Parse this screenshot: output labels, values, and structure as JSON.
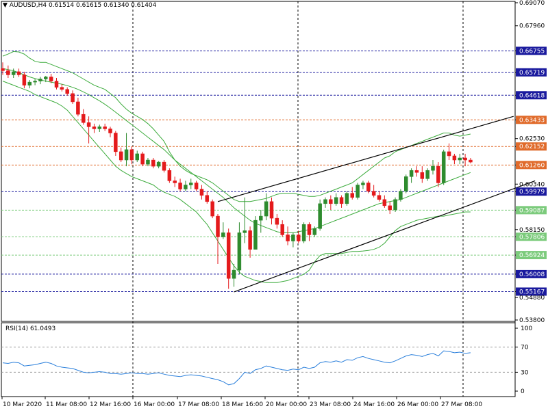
{
  "header": {
    "arrow": "▼",
    "symbol": "AUDUSD,H4",
    "ohlc": "0.61514 0.61615 0.61340 0.61404"
  },
  "rsi_title": "RSI(14) 61.0493",
  "colors": {
    "bull": "#2E8B2E",
    "bear": "#E41A1C",
    "band": "#3CAB3C",
    "rsi": "#2A7FDB",
    "blue_level": "#1A1A9E",
    "orange_level": "#E06A2A",
    "green_level": "#7CCB7C",
    "grid": "#000000"
  },
  "chart_data": [
    {
      "type": "candlestick",
      "title": "AUDUSD,H4",
      "ylim": [
        0.538,
        0.6907
      ],
      "price_ticks": [
        "0.69070",
        "0.67960",
        "0.66755",
        "0.65719",
        "0.64618",
        "0.63433",
        "0.62530",
        "0.62152",
        "0.61260",
        "0.60340",
        "0.59979",
        "0.59087",
        "0.58150",
        "0.57806",
        "0.56924",
        "0.56008",
        "0.55167",
        "0.54880",
        "0.53800"
      ],
      "x_labels": [
        "10 Mar 2020",
        "11 Mar 08:00",
        "12 Mar 16:00",
        "16 Mar 00:00",
        "17 Mar 08:00",
        "18 Mar 16:00",
        "20 Mar 00:00",
        "23 Mar 08:00",
        "24 Mar 16:00",
        "26 Mar 00:00",
        "27 Mar 08:00"
      ],
      "levels": [
        {
          "price": 0.66755,
          "label": "0.66755",
          "style": "blue"
        },
        {
          "price": 0.65719,
          "label": "0.65719",
          "style": "blue"
        },
        {
          "price": 0.64618,
          "label": "0.64618",
          "style": "blue"
        },
        {
          "price": 0.63433,
          "label": "0.63433",
          "style": "orange"
        },
        {
          "price": 0.62152,
          "label": "0.62152",
          "style": "orange"
        },
        {
          "price": 0.6126,
          "label": "0.61260",
          "style": "orange"
        },
        {
          "price": 0.59979,
          "label": "0.59979",
          "style": "blue"
        },
        {
          "price": 0.59087,
          "label": "0.59087",
          "style": "green"
        },
        {
          "price": 0.57806,
          "label": "0.57806",
          "style": "green"
        },
        {
          "price": 0.56924,
          "label": "0.56924",
          "style": "green"
        },
        {
          "price": 0.56008,
          "label": "0.56008",
          "style": "blue"
        },
        {
          "price": 0.55167,
          "label": "0.55167",
          "style": "blue"
        }
      ],
      "candles": [
        [
          0.659,
          0.662,
          0.656,
          0.658
        ],
        [
          0.658,
          0.6605,
          0.6545,
          0.656
        ],
        [
          0.656,
          0.659,
          0.6545,
          0.6575
        ],
        [
          0.6575,
          0.659,
          0.655,
          0.656
        ],
        [
          0.656,
          0.6575,
          0.6495,
          0.651
        ],
        [
          0.651,
          0.6535,
          0.6495,
          0.6525
        ],
        [
          0.6525,
          0.654,
          0.651,
          0.653
        ],
        [
          0.653,
          0.655,
          0.6515,
          0.654
        ],
        [
          0.654,
          0.6555,
          0.6525,
          0.655
        ],
        [
          0.655,
          0.6565,
          0.652,
          0.653
        ],
        [
          0.653,
          0.6545,
          0.649,
          0.65
        ],
        [
          0.65,
          0.6515,
          0.648,
          0.649
        ],
        [
          0.649,
          0.65,
          0.646,
          0.647
        ],
        [
          0.647,
          0.6485,
          0.642,
          0.643
        ],
        [
          0.643,
          0.645,
          0.636,
          0.637
        ],
        [
          0.637,
          0.6395,
          0.632,
          0.633
        ],
        [
          0.633,
          0.636,
          0.623,
          0.631
        ],
        [
          0.631,
          0.6325,
          0.628,
          0.63
        ],
        [
          0.63,
          0.632,
          0.6285,
          0.631
        ],
        [
          0.631,
          0.6325,
          0.629,
          0.63
        ],
        [
          0.63,
          0.631,
          0.626,
          0.628
        ],
        [
          0.628,
          0.629,
          0.617,
          0.619
        ],
        [
          0.619,
          0.621,
          0.614,
          0.615
        ],
        [
          0.615,
          0.628,
          0.612,
          0.62
        ],
        [
          0.62,
          0.6215,
          0.613,
          0.615
        ],
        [
          0.615,
          0.6195,
          0.614,
          0.618
        ],
        [
          0.618,
          0.619,
          0.612,
          0.613
        ],
        [
          0.613,
          0.616,
          0.612,
          0.615
        ],
        [
          0.615,
          0.616,
          0.611,
          0.612
        ],
        [
          0.612,
          0.6145,
          0.611,
          0.614
        ],
        [
          0.614,
          0.615,
          0.609,
          0.61
        ],
        [
          0.61,
          0.611,
          0.604,
          0.605
        ],
        [
          0.605,
          0.607,
          0.602,
          0.604
        ],
        [
          0.604,
          0.606,
          0.6,
          0.601
        ],
        [
          0.601,
          0.605,
          0.6,
          0.603
        ],
        [
          0.603,
          0.606,
          0.601,
          0.604
        ],
        [
          0.604,
          0.605,
          0.6,
          0.601
        ],
        [
          0.601,
          0.603,
          0.596,
          0.598
        ],
        [
          0.598,
          0.6,
          0.594,
          0.595
        ],
        [
          0.595,
          0.596,
          0.587,
          0.588
        ],
        [
          0.588,
          0.589,
          0.565,
          0.578
        ],
        [
          0.578,
          0.585,
          0.577,
          0.58
        ],
        [
          0.58,
          0.582,
          0.553,
          0.558
        ],
        [
          0.558,
          0.565,
          0.554,
          0.562
        ],
        [
          0.562,
          0.585,
          0.56,
          0.58
        ],
        [
          0.58,
          0.597,
          0.575,
          0.581
        ],
        [
          0.581,
          0.583,
          0.568,
          0.572
        ],
        [
          0.572,
          0.588,
          0.572,
          0.586
        ],
        [
          0.586,
          0.591,
          0.58,
          0.588
        ],
        [
          0.588,
          0.599,
          0.586,
          0.595
        ],
        [
          0.595,
          0.597,
          0.584,
          0.587
        ],
        [
          0.587,
          0.589,
          0.582,
          0.584
        ],
        [
          0.584,
          0.586,
          0.578,
          0.579
        ],
        [
          0.579,
          0.583,
          0.574,
          0.576
        ],
        [
          0.576,
          0.58,
          0.573,
          0.579
        ],
        [
          0.579,
          0.581,
          0.575,
          0.576
        ],
        [
          0.576,
          0.585,
          0.575,
          0.584
        ],
        [
          0.584,
          0.585,
          0.576,
          0.579
        ],
        [
          0.579,
          0.583,
          0.578,
          0.582
        ],
        [
          0.582,
          0.596,
          0.581,
          0.594
        ],
        [
          0.594,
          0.597,
          0.592,
          0.596
        ],
        [
          0.596,
          0.598,
          0.591,
          0.594
        ],
        [
          0.594,
          0.599,
          0.593,
          0.597
        ],
        [
          0.597,
          0.598,
          0.592,
          0.594
        ],
        [
          0.594,
          0.6,
          0.593,
          0.599
        ],
        [
          0.599,
          0.602,
          0.596,
          0.597
        ],
        [
          0.597,
          0.604,
          0.596,
          0.603
        ],
        [
          0.603,
          0.605,
          0.601,
          0.604
        ],
        [
          0.604,
          0.605,
          0.599,
          0.6
        ],
        [
          0.6,
          0.603,
          0.597,
          0.598
        ],
        [
          0.598,
          0.6,
          0.595,
          0.596
        ],
        [
          0.596,
          0.598,
          0.592,
          0.593
        ],
        [
          0.593,
          0.595,
          0.589,
          0.591
        ],
        [
          0.591,
          0.597,
          0.59,
          0.596
        ],
        [
          0.596,
          0.601,
          0.595,
          0.6
        ],
        [
          0.6,
          0.608,
          0.599,
          0.607
        ],
        [
          0.607,
          0.611,
          0.604,
          0.61
        ],
        [
          0.61,
          0.612,
          0.607,
          0.609
        ],
        [
          0.609,
          0.612,
          0.604,
          0.606
        ],
        [
          0.606,
          0.611,
          0.605,
          0.61
        ],
        [
          0.61,
          0.615,
          0.608,
          0.612
        ],
        [
          0.612,
          0.614,
          0.602,
          0.604
        ],
        [
          0.604,
          0.62,
          0.603,
          0.619
        ],
        [
          0.619,
          0.623,
          0.615,
          0.617
        ],
        [
          0.617,
          0.618,
          0.613,
          0.615
        ],
        [
          0.615,
          0.618,
          0.613,
          0.616
        ],
        [
          0.616,
          0.618,
          0.612,
          0.615
        ],
        [
          0.615,
          0.616,
          0.6134,
          0.614
        ]
      ],
      "bollinger": {
        "upper": [
          0.665,
          0.666,
          0.6672,
          0.667,
          0.666,
          0.664,
          0.6625,
          0.662,
          0.662,
          0.661,
          0.66,
          0.659,
          0.658,
          0.657,
          0.6555,
          0.654,
          0.6525,
          0.651,
          0.65,
          0.649,
          0.647,
          0.645,
          0.642,
          0.6395,
          0.6375,
          0.636,
          0.6345,
          0.6325,
          0.63,
          0.627,
          0.624,
          0.619,
          0.615,
          0.612,
          0.61,
          0.6085,
          0.6075,
          0.6065,
          0.6055,
          0.604,
          0.602,
          0.6,
          0.598,
          0.596,
          0.595,
          0.595,
          0.595,
          0.5955,
          0.596,
          0.5965,
          0.5975,
          0.5985,
          0.599,
          0.599,
          0.599,
          0.5985,
          0.598,
          0.5975,
          0.5975,
          0.598,
          0.599,
          0.6,
          0.601,
          0.602,
          0.603,
          0.604,
          0.606,
          0.608,
          0.61,
          0.612,
          0.614,
          0.616,
          0.617,
          0.619,
          0.62,
          0.621,
          0.622,
          0.623,
          0.624,
          0.625,
          0.626,
          0.627,
          0.628,
          0.628,
          0.627,
          0.6265,
          0.627,
          0.6275
        ],
        "middle": [
          0.659,
          0.6585,
          0.658,
          0.657,
          0.656,
          0.655,
          0.6542,
          0.6535,
          0.653,
          0.6525,
          0.652,
          0.6515,
          0.6508,
          0.65,
          0.649,
          0.6478,
          0.6465,
          0.645,
          0.6435,
          0.6418,
          0.64,
          0.638,
          0.636,
          0.634,
          0.632,
          0.63,
          0.628,
          0.626,
          0.624,
          0.622,
          0.62,
          0.6175,
          0.615,
          0.613,
          0.611,
          0.609,
          0.607,
          0.605,
          0.603,
          0.601,
          0.599,
          0.597,
          0.5945,
          0.592,
          0.59,
          0.588,
          0.586,
          0.5845,
          0.5835,
          0.5825,
          0.5815,
          0.5805,
          0.58,
          0.58,
          0.58,
          0.5805,
          0.581,
          0.5815,
          0.582,
          0.583,
          0.584,
          0.585,
          0.586,
          0.587,
          0.588,
          0.589,
          0.59,
          0.591,
          0.592,
          0.593,
          0.594,
          0.5945,
          0.595,
          0.5955,
          0.596,
          0.597,
          0.598,
          0.599,
          0.6,
          0.601,
          0.602,
          0.603,
          0.604,
          0.605,
          0.606,
          0.607,
          0.608,
          0.609
        ],
        "lower": [
          0.653,
          0.652,
          0.651,
          0.65,
          0.649,
          0.648,
          0.6465,
          0.6455,
          0.6445,
          0.6435,
          0.6425,
          0.641,
          0.639,
          0.636,
          0.633,
          0.63,
          0.627,
          0.624,
          0.621,
          0.618,
          0.615,
          0.612,
          0.61,
          0.6085,
          0.607,
          0.606,
          0.605,
          0.604,
          0.603,
          0.601,
          0.5995,
          0.5985,
          0.5975,
          0.596,
          0.594,
          0.592,
          0.59,
          0.587,
          0.584,
          0.58,
          0.576,
          0.572,
          0.568,
          0.564,
          0.561,
          0.559,
          0.558,
          0.557,
          0.5565,
          0.556,
          0.556,
          0.556,
          0.5565,
          0.557,
          0.558,
          0.559,
          0.56,
          0.562,
          0.566,
          0.569,
          0.57,
          0.57,
          0.57,
          0.57,
          0.5705,
          0.571,
          0.571,
          0.5712,
          0.5715,
          0.572,
          0.573,
          0.575,
          0.578,
          0.581,
          0.583,
          0.584,
          0.585,
          0.586,
          0.5865,
          0.587,
          0.5875,
          0.588,
          0.588,
          0.5885,
          0.589,
          0.5895,
          0.59,
          0.59
        ]
      },
      "channel": {
        "upper": [
          [
            40,
            0.595
          ],
          [
            95,
            0.636
          ]
        ],
        "lower": [
          [
            43,
            0.5515
          ],
          [
            99,
            0.605
          ]
        ]
      }
    },
    {
      "type": "line",
      "title": "RSI(14) 61.0493",
      "ylim": [
        0,
        100
      ],
      "y_ticks": [
        "100",
        "70",
        "30",
        "0"
      ],
      "levels": [
        70,
        30
      ],
      "values": [
        45,
        44,
        46,
        45,
        40,
        41,
        42,
        44,
        46,
        44,
        40,
        38,
        37,
        36,
        33,
        30,
        29,
        30,
        31,
        30,
        28,
        28,
        27,
        28,
        29,
        28,
        28,
        27,
        28,
        29,
        27,
        25,
        24,
        23,
        25,
        26,
        25,
        24,
        22,
        20,
        18,
        15,
        10,
        12,
        20,
        30,
        28,
        34,
        36,
        40,
        38,
        36,
        34,
        33,
        35,
        34,
        38,
        36,
        38,
        45,
        47,
        46,
        48,
        46,
        50,
        49,
        53,
        55,
        52,
        50,
        48,
        46,
        45,
        48,
        52,
        56,
        58,
        57,
        55,
        58,
        60,
        56,
        64,
        63,
        61,
        62,
        60,
        61
      ]
    }
  ]
}
